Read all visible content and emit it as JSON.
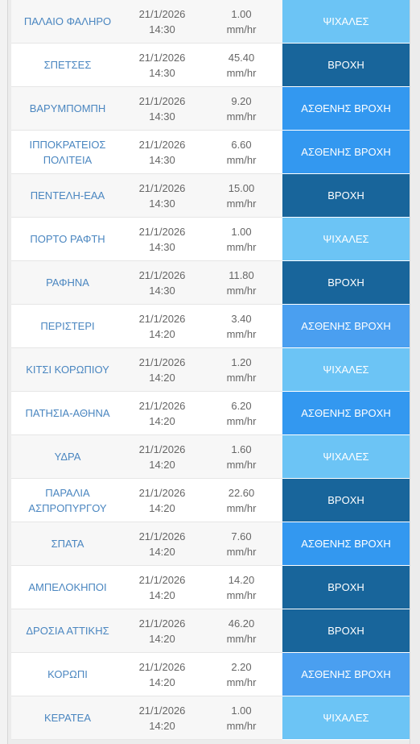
{
  "rows": [
    {
      "station": "ΠΑΛΑΙΟ ΦΑΛΗΡΟ",
      "date": "21/1/2026",
      "time": "14:30",
      "value": "1.00",
      "unit": "mm/hr",
      "status": "ΨΙΧΑΛΕΣ",
      "level": "drizzle"
    },
    {
      "station": "ΣΠΕΤΣΕΣ",
      "date": "21/1/2026",
      "time": "14:30",
      "value": "45.40",
      "unit": "mm/hr",
      "status": "ΒΡΟΧΗ",
      "level": "rain"
    },
    {
      "station": "ΒΑΡΥΜΠΟΜΠΗ",
      "date": "21/1/2026",
      "time": "14:30",
      "value": "9.20",
      "unit": "mm/hr",
      "status": "ΑΣΘΕΝΗΣ ΒΡΟΧΗ",
      "level": "light"
    },
    {
      "station_line1": "ΙΠΠΟΚΡΑΤΕΙΟΣ",
      "station_line2": "ΠΟΛΙΤΕΙΑ",
      "date": "21/1/2026",
      "time": "14:30",
      "value": "6.60",
      "unit": "mm/hr",
      "status": "ΑΣΘΕΝΗΣ ΒΡΟΧΗ",
      "level": "light"
    },
    {
      "station": "ΠΕΝΤΕΛΗ-ΕΑΑ",
      "date": "21/1/2026",
      "time": "14:30",
      "value": "15.00",
      "unit": "mm/hr",
      "status": "ΒΡΟΧΗ",
      "level": "rain"
    },
    {
      "station": "ΠΟΡΤΟ ΡΑΦΤΗ",
      "date": "21/1/2026",
      "time": "14:30",
      "value": "1.00",
      "unit": "mm/hr",
      "status": "ΨΙΧΑΛΕΣ",
      "level": "drizzle"
    },
    {
      "station": "ΡΑΦΗΝΑ",
      "date": "21/1/2026",
      "time": "14:30",
      "value": "11.80",
      "unit": "mm/hr",
      "status": "ΒΡΟΧΗ",
      "level": "rain"
    },
    {
      "station": "ΠΕΡΙΣΤΕΡΙ",
      "date": "21/1/2026",
      "time": "14:20",
      "value": "3.40",
      "unit": "mm/hr",
      "status": "ΑΣΘΕΝΗΣ ΒΡΟΧΗ",
      "level": "light-alt"
    },
    {
      "station": "ΚΙΤΣΙ ΚΟΡΩΠΙΟΥ",
      "date": "21/1/2026",
      "time": "14:20",
      "value": "1.20",
      "unit": "mm/hr",
      "status": "ΨΙΧΑΛΕΣ",
      "level": "drizzle"
    },
    {
      "station": "ΠΑΤΗΣΙΑ-ΑΘΗΝΑ",
      "date": "21/1/2026",
      "time": "14:20",
      "value": "6.20",
      "unit": "mm/hr",
      "status": "ΑΣΘΕΝΗΣ ΒΡΟΧΗ",
      "level": "light"
    },
    {
      "station": "ΥΔΡΑ",
      "date": "21/1/2026",
      "time": "14:20",
      "value": "1.60",
      "unit": "mm/hr",
      "status": "ΨΙΧΑΛΕΣ",
      "level": "drizzle"
    },
    {
      "station_line1": "ΠΑΡΑΛΙΑ",
      "station_line2": "ΑΣΠΡΟΠΥΡΓΟΥ",
      "date": "21/1/2026",
      "time": "14:20",
      "value": "22.60",
      "unit": "mm/hr",
      "status": "ΒΡΟΧΗ",
      "level": "rain"
    },
    {
      "station": "ΣΠΑΤΑ",
      "date": "21/1/2026",
      "time": "14:20",
      "value": "7.60",
      "unit": "mm/hr",
      "status": "ΑΣΘΕΝΗΣ ΒΡΟΧΗ",
      "level": "light"
    },
    {
      "station": "ΑΜΠΕΛΟΚΗΠΟΙ",
      "date": "21/1/2026",
      "time": "14:20",
      "value": "14.20",
      "unit": "mm/hr",
      "status": "ΒΡΟΧΗ",
      "level": "rain"
    },
    {
      "station": "ΔΡΟΣΙΑ ΑΤΤΙΚΗΣ",
      "date": "21/1/2026",
      "time": "14:20",
      "value": "46.20",
      "unit": "mm/hr",
      "status": "ΒΡΟΧΗ",
      "level": "rain"
    },
    {
      "station": "ΚΟΡΩΠΙ",
      "date": "21/1/2026",
      "time": "14:20",
      "value": "2.20",
      "unit": "mm/hr",
      "status": "ΑΣΘΕΝΗΣ ΒΡΟΧΗ",
      "level": "light-alt"
    },
    {
      "station": "ΚΕΡΑΤΕΑ",
      "date": "21/1/2026",
      "time": "14:20",
      "value": "1.00",
      "unit": "mm/hr",
      "status": "ΨΙΧΑΛΕΣ",
      "level": "drizzle"
    }
  ],
  "colors": {
    "drizzle": "#6cc4f5",
    "rain": "#18659b",
    "light": "#3398f0",
    "station_text": "#4a86c0"
  }
}
